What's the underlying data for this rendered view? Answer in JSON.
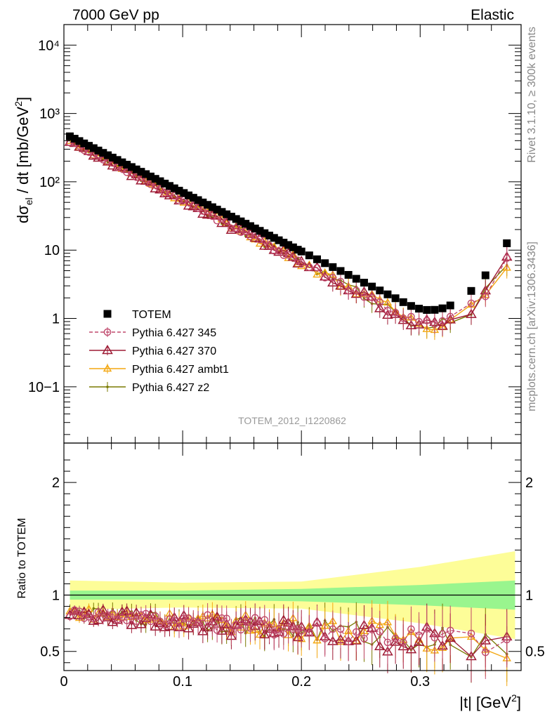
{
  "header": {
    "left": "7000 GeV pp",
    "right": "Elastic"
  },
  "side": {
    "rivet": "Rivet 3.1.10, ≥ 300k events",
    "mcplots": "mcplots.cern.ch [arXiv:1306.3436]"
  },
  "watermark": "TOTEM_2012_I1220862",
  "chart_data": [
    {
      "type": "scatter",
      "panel": "main",
      "ylabel": "dσel / dt [mb/GeV2]",
      "yscale": "log",
      "xlim": [
        0,
        0.385
      ],
      "ylim": [
        0.015,
        20000
      ],
      "yticks": [
        {
          "value": 0.1,
          "label": "10−1"
        },
        {
          "value": 1,
          "label": "1"
        },
        {
          "value": 10,
          "label": "10"
        },
        {
          "value": 100,
          "label": "10²"
        },
        {
          "value": 1000,
          "label": "10³"
        },
        {
          "value": 10000,
          "label": "10⁴"
        }
      ],
      "legend_position": "left-middle",
      "totem_model": {
        "a0": 511,
        "b": 19.9,
        "ltail": 0.29
      },
      "series": [
        {
          "name": "TOTEM",
          "color": "#000000",
          "marker": "square",
          "line": "none",
          "amp": 1.0,
          "bend": 0,
          "noise": 0.0
        },
        {
          "name": "Pythia 6.427 345",
          "color": "#c0496d",
          "marker": "open-circle",
          "line": "dashed",
          "amp": 0.845,
          "bend": 0.12,
          "noise": 0.04
        },
        {
          "name": "Pythia 6.427 370",
          "color": "#9e1b35",
          "marker": "open-triangle",
          "line": "solid",
          "amp": 0.84,
          "bend": 0.14,
          "noise": 0.05
        },
        {
          "name": "Pythia 6.427 ambt1",
          "color": "#f3a711",
          "marker": "open-triangle-small",
          "line": "solid",
          "amp": 0.85,
          "bend": 0.12,
          "noise": 0.045
        },
        {
          "name": "Pythia 6.427 z2",
          "color": "#7a7a00",
          "marker": "dot",
          "line": "solid",
          "amp": 0.85,
          "bend": 0.13,
          "noise": 0.045
        }
      ]
    },
    {
      "type": "line",
      "panel": "ratio",
      "ylabel": "Ratio to TOTEM",
      "xlabel": "|t| [GeV2]",
      "xlim": [
        0,
        0.385
      ],
      "ylim": [
        0.33,
        2.35
      ],
      "xticks": [
        {
          "value": 0,
          "label": "0"
        },
        {
          "value": 0.1,
          "label": "0.1"
        },
        {
          "value": 0.2,
          "label": "0.2"
        },
        {
          "value": 0.3,
          "label": "0.3"
        }
      ],
      "yticks": [
        {
          "value": 0.5,
          "label": "0.5"
        },
        {
          "value": 1,
          "label": "1"
        },
        {
          "value": 2,
          "label": "2"
        }
      ],
      "band_inner_color": "#99f58e",
      "band_outer_color": "#fdfd98",
      "band_inner": [
        {
          "x": 0.005,
          "h": 0.04
        },
        {
          "x": 0.1,
          "h": 0.04
        },
        {
          "x": 0.2,
          "h": 0.055
        },
        {
          "x": 0.3,
          "h": 0.09
        },
        {
          "x": 0.38,
          "h": 0.13
        }
      ],
      "band_outer": [
        {
          "x": 0.005,
          "h": 0.13
        },
        {
          "x": 0.1,
          "h": 0.11
        },
        {
          "x": 0.2,
          "h": 0.12
        },
        {
          "x": 0.3,
          "h": 0.25
        },
        {
          "x": 0.38,
          "h": 0.39
        }
      ]
    }
  ]
}
